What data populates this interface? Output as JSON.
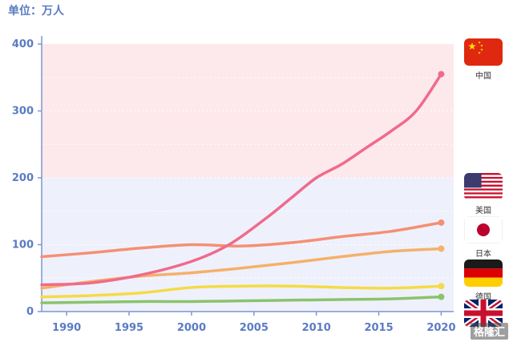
{
  "unit_label": "单位：万人",
  "watermark": "格隆汇",
  "chart_data": {
    "type": "line",
    "title": "",
    "xlabel": "",
    "ylabel": "",
    "xlim": [
      1988,
      2021
    ],
    "ylim": [
      0,
      400
    ],
    "yticks": [
      0,
      100,
      200,
      300,
      400
    ],
    "ytick_labels": [
      "0",
      "100",
      "200",
      "300",
      "400"
    ],
    "xticks": [
      1990,
      1995,
      2000,
      2005,
      2010,
      2015,
      2020
    ],
    "xtick_labels": [
      "1990",
      "1995",
      "2000",
      "2005",
      "2010",
      "2015",
      "2020"
    ],
    "bands": [
      {
        "from": 200,
        "to": 400,
        "color": "#fde8ec"
      },
      {
        "from": 0,
        "to": 200,
        "color": "#eef1fc"
      }
    ],
    "series": [
      {
        "name": "中国",
        "flag": "china",
        "color": "#ef6b8b",
        "x": [
          1988,
          1992,
          1996,
          2000,
          2003,
          2006,
          2008,
          2010,
          2012,
          2014,
          2016,
          2018,
          2020
        ],
        "y": [
          40,
          43,
          55,
          75,
          100,
          140,
          170,
          200,
          220,
          245,
          270,
          300,
          355
        ]
      },
      {
        "name": "美国",
        "flag": "usa",
        "color": "#f58f74",
        "x": [
          1988,
          1992,
          1996,
          2000,
          2004,
          2008,
          2012,
          2016,
          2020
        ],
        "y": [
          82,
          88,
          95,
          100,
          98,
          103,
          112,
          120,
          133
        ]
      },
      {
        "name": "日本",
        "flag": "japan",
        "color": "#f6b06b",
        "x": [
          1988,
          1992,
          1996,
          2000,
          2004,
          2008,
          2012,
          2016,
          2020
        ],
        "y": [
          35,
          45,
          53,
          58,
          65,
          73,
          82,
          90,
          94
        ]
      },
      {
        "name": "德国",
        "flag": "germany",
        "color": "#f5db45",
        "x": [
          1988,
          1992,
          1996,
          2000,
          2004,
          2008,
          2012,
          2016,
          2020
        ],
        "y": [
          22,
          24,
          28,
          36,
          38,
          38,
          36,
          35,
          38
        ]
      },
      {
        "name": "",
        "flag": "uk",
        "color": "#8bc36b",
        "x": [
          1988,
          1992,
          1996,
          2000,
          2004,
          2008,
          2012,
          2016,
          2020
        ],
        "y": [
          13,
          14,
          15,
          15,
          16,
          17,
          18,
          19,
          22
        ]
      }
    ]
  }
}
